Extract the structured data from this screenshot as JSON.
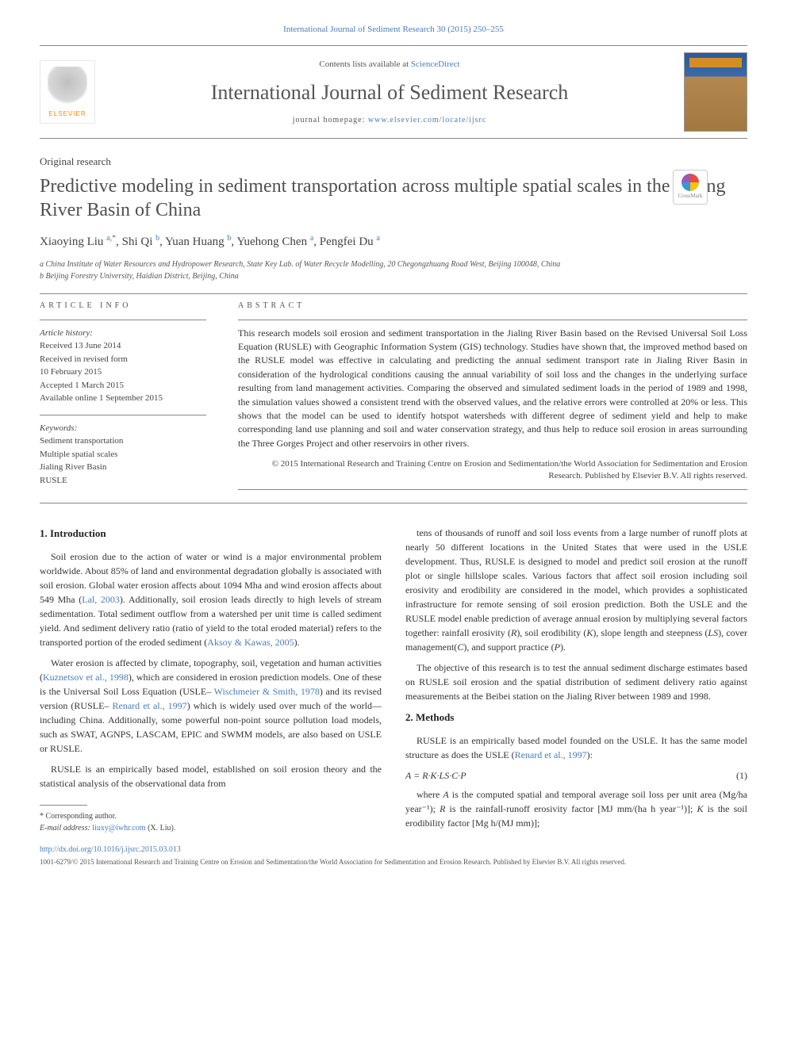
{
  "top_link": {
    "prefix": "",
    "journal": "International Journal of Sediment Research 30 (2015) 250–255"
  },
  "header": {
    "contents_prefix": "Contents lists available at ",
    "contents_link": "ScienceDirect",
    "journal_name": "International Journal of Sediment Research",
    "homepage_prefix": "journal homepage: ",
    "homepage_link": "www.elsevier.com/locate/ijsrc",
    "elsevier_label": "ELSEVIER"
  },
  "article": {
    "section": "Original research",
    "title": "Predictive modeling in sediment transportation across multiple spatial scales in the Jialing River Basin of China",
    "authors_html": "Xiaoying Liu <sup>a,*</sup>, Shi Qi <sup>b</sup>, Yuan Huang <sup>b</sup>, Yuehong Chen <sup>a</sup>, Pengfei Du <sup>a</sup>",
    "affiliations": [
      "a China Institute of Water Resources and Hydropower Research, State Key Lab. of Water Recycle Modelling, 20 Chegongzhuang Road West, Beijing 100048, China",
      "b Beijing Forestry University, Haidian District, Beijing, China"
    ]
  },
  "info": {
    "heading": "ARTICLE INFO",
    "history_label": "Article history:",
    "history": [
      "Received 13 June 2014",
      "Received in revised form",
      "10 February 2015",
      "Accepted 1 March 2015",
      "Available online 1 September 2015"
    ],
    "keywords_label": "Keywords:",
    "keywords": [
      "Sediment transportation",
      "Multiple spatial scales",
      "Jialing River Basin",
      "RUSLE"
    ]
  },
  "abstract": {
    "heading": "ABSTRACT",
    "text": "This research models soil erosion and sediment transportation in the Jialing River Basin based on the Revised Universal Soil Loss Equation (RUSLE) with Geographic Information System (GIS) technology. Studies have shown that, the improved method based on the RUSLE model was effective in calculating and predicting the annual sediment transport rate in Jialing River Basin in consideration of the hydrological conditions causing the annual variability of soil loss and the changes in the underlying surface resulting from land management activities. Comparing the observed and simulated sediment loads in the period of 1989 and 1998, the simulation values showed a consistent trend with the observed values, and the relative errors were controlled at 20% or less. This shows that the model can be used to identify hotspot watersheds with different degree of sediment yield and help to make corresponding land use planning and soil and water conservation strategy, and thus help to reduce soil erosion in areas surrounding the Three Gorges Project and other reservoirs in other rivers.",
    "copyright": "© 2015 International Research and Training Centre on Erosion and Sedimentation/the World Association for Sedimentation and Erosion Research. Published by Elsevier B.V. All rights reserved."
  },
  "body": {
    "left": {
      "h_intro": "1.  Introduction",
      "p1": "Soil erosion due to the action of water or wind is a major environmental problem worldwide. About 85% of land and environmental degradation globally is associated with soil erosion. Global water erosion affects about 1094 Mha and wind erosion affects about 549 Mha (Lal, 2003). Additionally, soil erosion leads directly to high levels of stream sedimentation. Total sediment outflow from a watershed per unit time is called sediment yield. And sediment delivery ratio (ratio of yield to the total eroded material) refers to the transported portion of the eroded sediment (Aksoy & Kawas, 2005).",
      "p2": "Water erosion is affected by climate, topography, soil, vegetation and human activities (Kuznetsov et al., 1998), which are considered in erosion prediction models. One of these is the Universal Soil Loss Equation (USLE– Wischmeier & Smith, 1978) and its revised version (RUSLE– Renard et al., 1997) which is widely used over much of the world—including China. Additionally, some powerful non-point source pollution load models, such as SWAT, AGNPS, LASCAM, EPIC and SWMM models, are also based on USLE or RUSLE.",
      "p3": "RUSLE is an empirically based model, established on soil erosion theory and the statistical analysis of the observational data from"
    },
    "right": {
      "p1": "tens of thousands of runoff and soil loss events from a large number of runoff plots at nearly 50 different locations in the United States that were used in the USLE development. Thus, RUSLE is designed to model and predict soil erosion at the runoff plot or single hillslope scales. Various factors that affect soil erosion including soil erosivity and erodibility are considered in the model, which provides a sophisticated infrastructure for remote sensing of soil erosion prediction. Both the USLE and the RUSLE model enable prediction of average annual erosion by multiplying several factors together: rainfall erosivity (R), soil erodibility (K), slope length and steepness (LS), cover management(C), and support practice (P).",
      "p2": "The objective of this research is to test the annual sediment discharge estimates based on RUSLE soil erosion and the spatial distribution of sediment delivery ratio against measurements at the Beibei station on the Jialing River between 1989 and 1998.",
      "h_methods": "2.  Methods",
      "p3": "RUSLE is an empirically based model founded on the USLE. It has the same model structure as does the USLE (Renard et al., 1997):",
      "eq": "A = R·K·LS·C·P",
      "eq_num": "(1)",
      "p4": "where A is the computed spatial and temporal average soil loss per unit area (Mg/ha year⁻¹); R is the rainfall-runoff erosivity factor [MJ mm/(ha h year⁻¹)]; K is the soil erodibility factor [Mg h/(MJ mm)];"
    }
  },
  "footnote": {
    "corr": "* Corresponding author.",
    "email_label": "E-mail address: ",
    "email": "liuxy@iwhr.com",
    "email_suffix": " (X. Liu)."
  },
  "doi": "http://dx.doi.org/10.1016/j.ijsrc.2015.03.013",
  "bottom_copyright": "1001-6279/© 2015 International Research and Training Centre on Erosion and Sedimentation/the World Association for Sedimentation and Erosion Research. Published by Elsevier B.V. All rights reserved.",
  "colors": {
    "link": "#4a7db8",
    "text": "#333333",
    "heading": "#505050",
    "rule": "#888888"
  }
}
